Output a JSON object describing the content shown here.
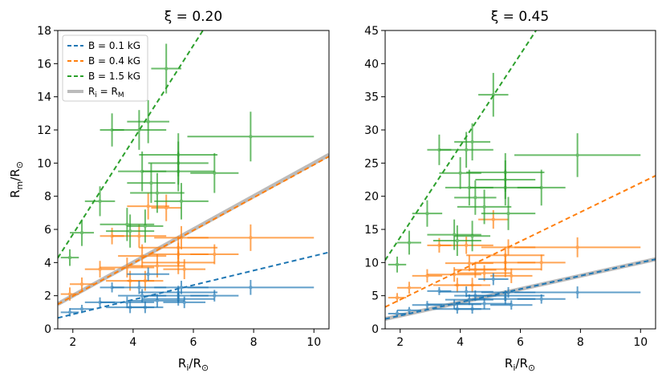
{
  "chart_data": [
    {
      "type": "scatter",
      "title": "ξ = 0.20",
      "xlabel_main": "R",
      "xlabel_sub": "i",
      "xlabel_rest": "/R",
      "xlabel_sym": "⊙",
      "ylabel_main": "R",
      "ylabel_sub": "m",
      "ylabel_rest": "/R",
      "ylabel_sym": "⊙",
      "xlim": [
        1.5,
        10.5
      ],
      "ylim": [
        0,
        18
      ],
      "xticks": [
        2,
        4,
        6,
        8,
        10
      ],
      "yticks": [
        0,
        2,
        4,
        6,
        8,
        10,
        12,
        14,
        16,
        18
      ],
      "legend": {
        "position": "top-left",
        "entries": [
          {
            "label": "B = 0.1 kG",
            "series": "blue"
          },
          {
            "label": "B = 0.4 kG",
            "series": "orange"
          },
          {
            "label": "B = 1.5 kG",
            "series": "green"
          },
          {
            "label_main": "R",
            "label_sub1": "i",
            "label_mid": " = R",
            "label_sub2": "M",
            "series": "gray"
          }
        ]
      },
      "lines": [
        {
          "series": "blue",
          "style": "dashed",
          "slope": 0.44,
          "intercept": 0.0
        },
        {
          "series": "orange",
          "style": "dashed",
          "slope": 0.99,
          "intercept": 0.0
        },
        {
          "series": "green",
          "style": "dashed",
          "slope": 2.85,
          "intercept": 0.0
        },
        {
          "series": "gray",
          "style": "solid",
          "slope": 1.0,
          "intercept": 0.0
        }
      ],
      "series": [
        {
          "name": "B = 0.1 kG",
          "key": "blue",
          "points": [
            {
              "x": 1.9,
              "y": 1.0,
              "xerr": 0.3,
              "yerr": 0.25
            },
            {
              "x": 2.3,
              "y": 1.2,
              "xerr": 0.4,
              "yerr": 0.25
            },
            {
              "x": 2.9,
              "y": 1.6,
              "xerr": 0.5,
              "yerr": 0.3
            },
            {
              "x": 3.3,
              "y": 2.5,
              "xerr": 0.4,
              "yerr": 0.3
            },
            {
              "x": 3.8,
              "y": 1.6,
              "xerr": 0.9,
              "yerr": 0.35
            },
            {
              "x": 3.9,
              "y": 1.3,
              "xerr": 0.8,
              "yerr": 0.35
            },
            {
              "x": 4.2,
              "y": 2.5,
              "xerr": 0.9,
              "yerr": 0.4
            },
            {
              "x": 4.3,
              "y": 2.0,
              "xerr": 0.8,
              "yerr": 0.4
            },
            {
              "x": 4.4,
              "y": 1.3,
              "xerr": 0.6,
              "yerr": 0.35
            },
            {
              "x": 4.5,
              "y": 3.3,
              "xerr": 0.7,
              "yerr": 0.4
            },
            {
              "x": 4.8,
              "y": 1.7,
              "xerr": 0.9,
              "yerr": 0.4
            },
            {
              "x": 5.5,
              "y": 2.2,
              "xerr": 1.3,
              "yerr": 0.4
            },
            {
              "x": 5.5,
              "y": 2.0,
              "xerr": 1.0,
              "yerr": 0.4
            },
            {
              "x": 5.5,
              "y": 1.8,
              "xerr": 1.2,
              "yerr": 0.4
            },
            {
              "x": 5.6,
              "y": 2.5,
              "xerr": 0.9,
              "yerr": 0.4
            },
            {
              "x": 5.7,
              "y": 1.6,
              "xerr": 0.7,
              "yerr": 0.35
            },
            {
              "x": 6.7,
              "y": 2.0,
              "xerr": 0.8,
              "yerr": 0.35
            },
            {
              "x": 7.9,
              "y": 2.5,
              "xerr": 2.1,
              "yerr": 0.45
            }
          ]
        },
        {
          "name": "B = 0.4 kG",
          "key": "orange",
          "points": [
            {
              "x": 1.9,
              "y": 2.1,
              "xerr": 0.3,
              "yerr": 0.4
            },
            {
              "x": 2.3,
              "y": 2.7,
              "xerr": 0.4,
              "yerr": 0.4
            },
            {
              "x": 2.9,
              "y": 3.6,
              "xerr": 0.5,
              "yerr": 0.5
            },
            {
              "x": 3.3,
              "y": 5.6,
              "xerr": 0.4,
              "yerr": 0.5
            },
            {
              "x": 3.8,
              "y": 3.7,
              "xerr": 0.9,
              "yerr": 0.6
            },
            {
              "x": 3.9,
              "y": 2.9,
              "xerr": 0.8,
              "yerr": 0.6
            },
            {
              "x": 4.2,
              "y": 5.6,
              "xerr": 0.9,
              "yerr": 0.7
            },
            {
              "x": 4.3,
              "y": 4.4,
              "xerr": 0.8,
              "yerr": 0.7
            },
            {
              "x": 4.4,
              "y": 2.9,
              "xerr": 0.6,
              "yerr": 0.6
            },
            {
              "x": 4.5,
              "y": 7.4,
              "xerr": 0.7,
              "yerr": 0.8
            },
            {
              "x": 4.8,
              "y": 3.8,
              "xerr": 0.9,
              "yerr": 0.7
            },
            {
              "x": 5.1,
              "y": 7.3,
              "xerr": 0.5,
              "yerr": 0.8
            },
            {
              "x": 5.5,
              "y": 4.9,
              "xerr": 1.3,
              "yerr": 0.7
            },
            {
              "x": 5.5,
              "y": 4.5,
              "xerr": 1.0,
              "yerr": 0.7
            },
            {
              "x": 5.5,
              "y": 4.0,
              "xerr": 1.2,
              "yerr": 0.7
            },
            {
              "x": 5.6,
              "y": 5.5,
              "xerr": 0.9,
              "yerr": 0.7
            },
            {
              "x": 5.7,
              "y": 3.6,
              "xerr": 0.7,
              "yerr": 0.6
            },
            {
              "x": 6.7,
              "y": 4.5,
              "xerr": 0.8,
              "yerr": 0.6
            },
            {
              "x": 7.9,
              "y": 5.5,
              "xerr": 2.1,
              "yerr": 0.8
            }
          ]
        },
        {
          "name": "B = 1.5 kG",
          "key": "green",
          "points": [
            {
              "x": 1.9,
              "y": 4.3,
              "xerr": 0.3,
              "yerr": 0.5
            },
            {
              "x": 2.3,
              "y": 5.8,
              "xerr": 0.4,
              "yerr": 0.8
            },
            {
              "x": 2.9,
              "y": 7.7,
              "xerr": 0.5,
              "yerr": 0.9
            },
            {
              "x": 3.3,
              "y": 12.0,
              "xerr": 0.4,
              "yerr": 1.0
            },
            {
              "x": 3.8,
              "y": 6.3,
              "xerr": 0.9,
              "yerr": 1.0
            },
            {
              "x": 3.9,
              "y": 5.9,
              "xerr": 0.8,
              "yerr": 1.0
            },
            {
              "x": 4.2,
              "y": 12.0,
              "xerr": 0.9,
              "yerr": 1.2
            },
            {
              "x": 4.3,
              "y": 9.5,
              "xerr": 0.8,
              "yerr": 1.2
            },
            {
              "x": 4.4,
              "y": 6.2,
              "xerr": 0.6,
              "yerr": 1.0
            },
            {
              "x": 4.5,
              "y": 12.5,
              "xerr": 0.7,
              "yerr": 1.3
            },
            {
              "x": 4.6,
              "y": 8.8,
              "xerr": 0.8,
              "yerr": 1.2
            },
            {
              "x": 4.8,
              "y": 8.2,
              "xerr": 0.9,
              "yerr": 1.2
            },
            {
              "x": 5.1,
              "y": 15.7,
              "xerr": 0.5,
              "yerr": 1.5
            },
            {
              "x": 5.5,
              "y": 10.5,
              "xerr": 1.3,
              "yerr": 1.3
            },
            {
              "x": 5.5,
              "y": 10.0,
              "xerr": 1.0,
              "yerr": 1.3
            },
            {
              "x": 5.5,
              "y": 9.5,
              "xerr": 1.2,
              "yerr": 1.2
            },
            {
              "x": 5.6,
              "y": 7.7,
              "xerr": 0.9,
              "yerr": 1.1
            },
            {
              "x": 6.7,
              "y": 9.4,
              "xerr": 0.8,
              "yerr": 1.2
            },
            {
              "x": 7.9,
              "y": 11.6,
              "xerr": 2.1,
              "yerr": 1.5
            }
          ]
        }
      ]
    },
    {
      "type": "scatter",
      "title": "ξ = 0.45",
      "xlabel_main": "R",
      "xlabel_sub": "i",
      "xlabel_rest": "/R",
      "xlabel_sym": "⊙",
      "xlim": [
        1.5,
        10.5
      ],
      "ylim": [
        0,
        45
      ],
      "xticks": [
        2,
        4,
        6,
        8,
        10
      ],
      "yticks": [
        0,
        5,
        10,
        15,
        20,
        25,
        30,
        35,
        40,
        45
      ],
      "lines": [
        {
          "series": "blue",
          "style": "dashed",
          "slope": 1.0,
          "intercept": 0.0
        },
        {
          "series": "orange",
          "style": "dashed",
          "slope": 2.2,
          "intercept": 0.0
        },
        {
          "series": "green",
          "style": "dashed",
          "slope": 6.9,
          "intercept": 0.0
        },
        {
          "series": "gray",
          "style": "solid",
          "slope": 1.0,
          "intercept": 0.0
        }
      ],
      "series": [
        {
          "name": "B = 0.1 kG",
          "key": "blue",
          "points": [
            {
              "x": 1.9,
              "y": 2.3,
              "xerr": 0.3,
              "yerr": 0.5
            },
            {
              "x": 2.3,
              "y": 2.8,
              "xerr": 0.4,
              "yerr": 0.5
            },
            {
              "x": 2.9,
              "y": 3.6,
              "xerr": 0.5,
              "yerr": 0.6
            },
            {
              "x": 3.3,
              "y": 5.7,
              "xerr": 0.4,
              "yerr": 0.6
            },
            {
              "x": 3.8,
              "y": 3.7,
              "xerr": 0.9,
              "yerr": 0.7
            },
            {
              "x": 3.9,
              "y": 3.0,
              "xerr": 0.8,
              "yerr": 0.7
            },
            {
              "x": 4.2,
              "y": 5.6,
              "xerr": 0.9,
              "yerr": 0.8
            },
            {
              "x": 4.3,
              "y": 4.4,
              "xerr": 0.8,
              "yerr": 0.8
            },
            {
              "x": 4.4,
              "y": 3.0,
              "xerr": 0.6,
              "yerr": 0.7
            },
            {
              "x": 4.5,
              "y": 5.0,
              "xerr": 0.7,
              "yerr": 0.8
            },
            {
              "x": 4.8,
              "y": 3.8,
              "xerr": 0.9,
              "yerr": 0.8
            },
            {
              "x": 5.1,
              "y": 7.5,
              "xerr": 0.5,
              "yerr": 0.9
            },
            {
              "x": 5.5,
              "y": 5.0,
              "xerr": 1.3,
              "yerr": 0.8
            },
            {
              "x": 5.5,
              "y": 4.5,
              "xerr": 1.0,
              "yerr": 0.8
            },
            {
              "x": 5.6,
              "y": 5.5,
              "xerr": 0.9,
              "yerr": 0.8
            },
            {
              "x": 5.7,
              "y": 3.6,
              "xerr": 0.7,
              "yerr": 0.7
            },
            {
              "x": 6.7,
              "y": 4.5,
              "xerr": 0.8,
              "yerr": 0.7
            },
            {
              "x": 7.9,
              "y": 5.5,
              "xerr": 2.1,
              "yerr": 0.9
            }
          ]
        },
        {
          "name": "B = 0.4 kG",
          "key": "orange",
          "points": [
            {
              "x": 1.9,
              "y": 4.7,
              "xerr": 0.3,
              "yerr": 0.7
            },
            {
              "x": 2.3,
              "y": 6.2,
              "xerr": 0.4,
              "yerr": 0.9
            },
            {
              "x": 2.9,
              "y": 8.0,
              "xerr": 0.5,
              "yerr": 1.0
            },
            {
              "x": 3.3,
              "y": 12.6,
              "xerr": 0.4,
              "yerr": 1.1
            },
            {
              "x": 3.8,
              "y": 8.2,
              "xerr": 0.9,
              "yerr": 1.1
            },
            {
              "x": 3.9,
              "y": 6.6,
              "xerr": 0.8,
              "yerr": 1.1
            },
            {
              "x": 4.2,
              "y": 12.6,
              "xerr": 0.9,
              "yerr": 1.3
            },
            {
              "x": 4.3,
              "y": 9.9,
              "xerr": 0.8,
              "yerr": 1.2
            },
            {
              "x": 4.4,
              "y": 6.6,
              "xerr": 0.6,
              "yerr": 1.1
            },
            {
              "x": 4.5,
              "y": 8.9,
              "xerr": 0.7,
              "yerr": 1.2
            },
            {
              "x": 4.8,
              "y": 8.4,
              "xerr": 0.9,
              "yerr": 1.2
            },
            {
              "x": 5.1,
              "y": 16.5,
              "xerr": 0.5,
              "yerr": 1.4
            },
            {
              "x": 5.5,
              "y": 11.1,
              "xerr": 1.3,
              "yerr": 1.3
            },
            {
              "x": 5.5,
              "y": 10.0,
              "xerr": 1.0,
              "yerr": 1.3
            },
            {
              "x": 5.5,
              "y": 9.0,
              "xerr": 1.2,
              "yerr": 1.2
            },
            {
              "x": 5.6,
              "y": 12.3,
              "xerr": 0.9,
              "yerr": 1.2
            },
            {
              "x": 5.7,
              "y": 8.0,
              "xerr": 0.7,
              "yerr": 1.1
            },
            {
              "x": 6.7,
              "y": 10.0,
              "xerr": 0.8,
              "yerr": 1.2
            },
            {
              "x": 7.9,
              "y": 12.3,
              "xerr": 2.1,
              "yerr": 1.5
            }
          ]
        },
        {
          "name": "B = 1.5 kG",
          "key": "green",
          "points": [
            {
              "x": 1.9,
              "y": 9.7,
              "xerr": 0.3,
              "yerr": 1.2
            },
            {
              "x": 2.3,
              "y": 13.0,
              "xerr": 0.4,
              "yerr": 1.8
            },
            {
              "x": 2.9,
              "y": 17.4,
              "xerr": 0.5,
              "yerr": 2.0
            },
            {
              "x": 3.3,
              "y": 27.0,
              "xerr": 0.4,
              "yerr": 2.3
            },
            {
              "x": 3.8,
              "y": 14.2,
              "xerr": 0.9,
              "yerr": 2.3
            },
            {
              "x": 3.9,
              "y": 13.3,
              "xerr": 0.8,
              "yerr": 2.3
            },
            {
              "x": 4.0,
              "y": 23.5,
              "xerr": 0.7,
              "yerr": 2.4
            },
            {
              "x": 4.2,
              "y": 27.0,
              "xerr": 0.9,
              "yerr": 2.7
            },
            {
              "x": 4.3,
              "y": 21.3,
              "xerr": 0.8,
              "yerr": 2.7
            },
            {
              "x": 4.4,
              "y": 28.2,
              "xerr": 0.6,
              "yerr": 2.8
            },
            {
              "x": 4.4,
              "y": 14.0,
              "xerr": 0.6,
              "yerr": 2.3
            },
            {
              "x": 4.5,
              "y": 19.8,
              "xerr": 0.7,
              "yerr": 2.6
            },
            {
              "x": 4.8,
              "y": 18.4,
              "xerr": 0.9,
              "yerr": 2.6
            },
            {
              "x": 5.1,
              "y": 35.3,
              "xerr": 0.5,
              "yerr": 3.3
            },
            {
              "x": 5.5,
              "y": 23.6,
              "xerr": 1.3,
              "yerr": 2.9
            },
            {
              "x": 5.5,
              "y": 22.5,
              "xerr": 1.0,
              "yerr": 2.9
            },
            {
              "x": 5.5,
              "y": 21.3,
              "xerr": 1.2,
              "yerr": 2.7
            },
            {
              "x": 5.6,
              "y": 17.4,
              "xerr": 0.9,
              "yerr": 2.5
            },
            {
              "x": 6.7,
              "y": 21.3,
              "xerr": 0.8,
              "yerr": 2.7
            },
            {
              "x": 7.9,
              "y": 26.2,
              "xerr": 2.1,
              "yerr": 3.3
            }
          ]
        }
      ]
    }
  ],
  "colors": {
    "blue": "#1f77b4",
    "orange": "#ff7f0e",
    "green": "#2ca02c",
    "gray": "#bbbbbb"
  }
}
